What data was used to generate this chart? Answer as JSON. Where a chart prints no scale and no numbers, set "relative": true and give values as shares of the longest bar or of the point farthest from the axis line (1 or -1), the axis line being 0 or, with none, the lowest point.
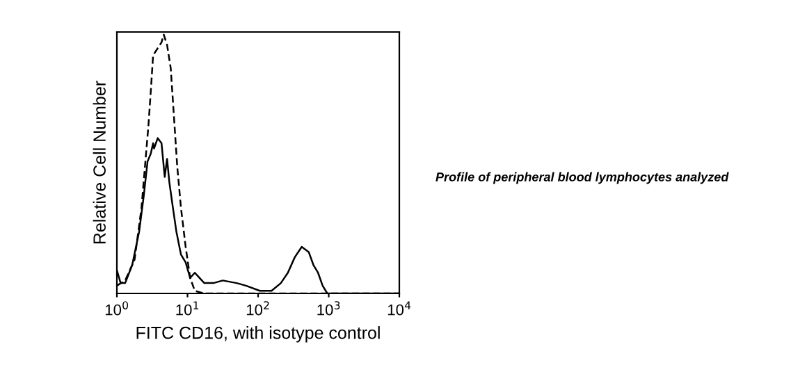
{
  "chart_data": {
    "type": "line",
    "relative": true,
    "log": "x",
    "xlabel": "FITC CD16, with isotype control",
    "ylabel": "Relative Cell Number",
    "xlim": [
      1,
      10000
    ],
    "xticks": [
      {
        "value": 1,
        "label": "10$^{0}$"
      },
      {
        "value": 10,
        "label": "10$^{1}$"
      },
      {
        "value": 100,
        "label": "10$^{2}$"
      },
      {
        "value": 1000,
        "label": "10$^{3}$"
      },
      {
        "value": 10000,
        "label": "10$^{4}$"
      }
    ],
    "grid": false,
    "legend": false,
    "marker": "none",
    "annotations": [
      "Profile of peripheral blood lymphocytes analyzed"
    ],
    "series": [
      {
        "color": "#000000",
        "line_style": "dashed",
        "x": [
          1,
          1.31,
          1.78,
          2.23,
          2.59,
          2.8,
          3.02,
          3.26,
          4.29,
          4.61,
          5.14,
          5.79,
          6.44,
          7.16,
          8.09,
          9.42,
          10.9,
          12.7,
          17.3,
          10000
        ],
        "values": [
          0.03,
          0.05,
          0.13,
          0.33,
          0.54,
          0.65,
          0.78,
          0.92,
          0.97,
          1,
          0.96,
          0.87,
          0.68,
          0.49,
          0.33,
          0.18,
          0.06,
          0.01,
          0,
          0
        ]
      },
      {
        "color": "#000000",
        "line_style": "solid",
        "x": [
          1,
          1.13,
          1.31,
          1.65,
          2.07,
          2.41,
          2.72,
          3.02,
          3.26,
          3.36,
          3.79,
          4.29,
          4.76,
          5.14,
          5.53,
          6.15,
          6.95,
          8.09,
          9.42,
          10.9,
          12.7,
          14.8,
          17.3,
          23.3,
          31.6,
          49.8,
          67.5,
          106,
          155,
          210,
          264,
          331,
          415,
          521,
          607,
          706,
          820,
          955,
          1110,
          10000
        ],
        "values": [
          0.09,
          0.04,
          0.04,
          0.11,
          0.24,
          0.38,
          0.51,
          0.54,
          0.58,
          0.56,
          0.6,
          0.58,
          0.45,
          0.52,
          0.43,
          0.34,
          0.24,
          0.15,
          0.12,
          0.06,
          0.08,
          0.06,
          0.04,
          0.04,
          0.05,
          0.04,
          0.03,
          0.01,
          0.01,
          0.04,
          0.08,
          0.14,
          0.18,
          0.16,
          0.11,
          0.08,
          0.03,
          0,
          0,
          0
        ]
      }
    ]
  }
}
